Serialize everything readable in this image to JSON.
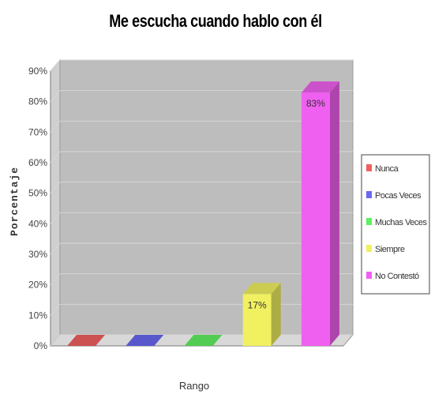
{
  "chart_data": {
    "type": "bar",
    "title": "Me escucha cuando hablo con él",
    "xlabel": "Rango",
    "ylabel": "Porcentaje",
    "ylim": [
      0,
      90
    ],
    "yticks": [
      "0%",
      "10%",
      "20%",
      "30%",
      "40%",
      "50%",
      "60%",
      "70%",
      "80%",
      "90%"
    ],
    "grid": true,
    "legend_position": "right",
    "categories": [
      "Nunca",
      "Pocas Veces",
      "Muchas Veces",
      "Siempre",
      "No Contestó"
    ],
    "values": [
      0,
      0,
      0,
      17,
      83
    ],
    "data_labels": [
      "",
      "",
      "",
      "17%",
      "83%"
    ],
    "colors": [
      "#f06060",
      "#6868f0",
      "#60f060",
      "#f0f060",
      "#f060f0"
    ]
  }
}
